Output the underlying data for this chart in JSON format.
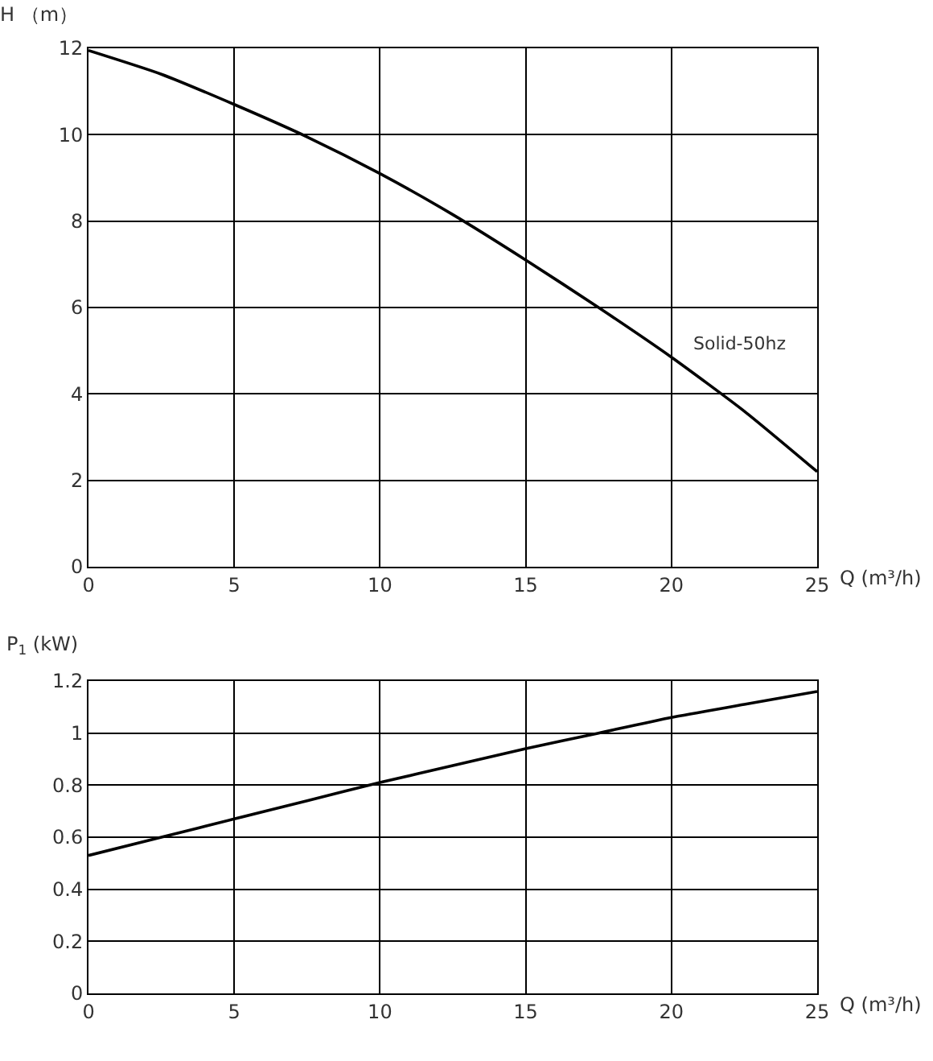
{
  "chart_data": [
    {
      "type": "line",
      "xlabel": "Q (m³/h)",
      "ylabel": "H （m）",
      "x": [
        0,
        2.5,
        5,
        7.5,
        10,
        12.5,
        15,
        17.5,
        20,
        22.5,
        25
      ],
      "series": [
        {
          "name": "Solid-50hz",
          "color": "#000000",
          "values": [
            11.95,
            11.4,
            10.7,
            9.95,
            9.1,
            8.15,
            7.1,
            6.0,
            4.85,
            3.6,
            2.2
          ]
        }
      ],
      "xlim": [
        0,
        25
      ],
      "xticks": [
        0,
        5,
        10,
        15,
        20,
        25
      ],
      "ylim": [
        0,
        12
      ],
      "yticks": [
        0,
        2,
        4,
        6,
        8,
        10,
        12
      ],
      "grid": true,
      "marker": "none",
      "line_style": "solid"
    },
    {
      "type": "line",
      "xlabel": "Q (m³/h)",
      "ylabel": "P$_{1}$ (kW)",
      "x": [
        0,
        2.5,
        5,
        7.5,
        10,
        12.5,
        15,
        17.5,
        20,
        22.5,
        25
      ],
      "series": [
        {
          "color": "#000000",
          "values": [
            0.53,
            0.6,
            0.67,
            0.74,
            0.81,
            0.875,
            0.94,
            1.0,
            1.06,
            1.11,
            1.16
          ]
        }
      ],
      "xlim": [
        0,
        25
      ],
      "xticks": [
        0,
        5,
        10,
        15,
        20,
        25
      ],
      "ylim": [
        0,
        1.2
      ],
      "yticks": [
        0,
        0.2,
        0.4,
        0.6,
        0.8,
        1,
        1.2
      ],
      "grid": true,
      "marker": "none",
      "line_style": "solid"
    }
  ]
}
